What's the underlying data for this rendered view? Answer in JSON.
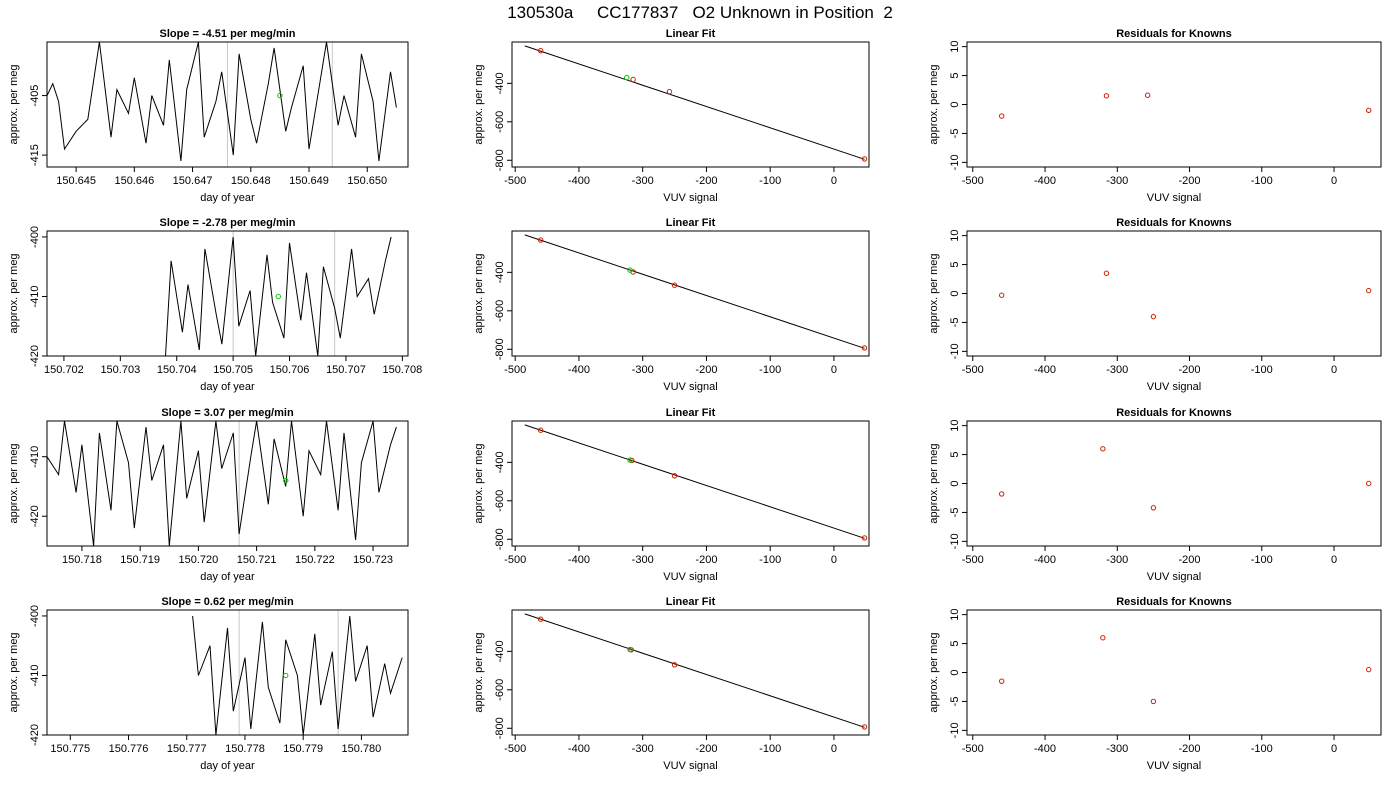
{
  "header": {
    "title": "130530a     CC177837   O2 Unknown in Position  2"
  },
  "colors": {
    "trace": "#000000",
    "known_point": "#cc2200",
    "unknown_point": "#00cc00",
    "marker_line": "#c8c8c8",
    "axis": "#000000"
  },
  "chart_data": [
    {
      "type": "line",
      "title": "Slope =  -4.51  per meg/min",
      "xlabel": "day of year",
      "ylabel": "approx. per meg",
      "xlim": [
        150.6445,
        150.6507
      ],
      "ylim": [
        -417,
        -396
      ],
      "xticks": [
        150.645,
        150.646,
        150.647,
        150.648,
        150.649,
        150.65
      ],
      "xtick_labels": [
        "150.645",
        "150.646",
        "150.647",
        "150.648",
        "150.649",
        "150.650"
      ],
      "yticks": [
        -405,
        -415
      ],
      "ytick_labels": [
        "-405",
        "-415"
      ],
      "vlines": [
        150.6476,
        150.6494
      ],
      "x": [
        150.6445,
        150.6446,
        150.6447,
        150.6448,
        150.645,
        150.6452,
        150.6454,
        150.6456,
        150.6457,
        150.6459,
        150.646,
        150.6462,
        150.6463,
        150.6465,
        150.6466,
        150.6468,
        150.6469,
        150.6471,
        150.6472,
        150.6474,
        150.6475,
        150.6477,
        150.6478,
        150.648,
        150.6481,
        150.6483,
        150.6484,
        150.6486,
        150.6487,
        150.6489,
        150.649,
        150.6492,
        150.6493,
        150.6495,
        150.6496,
        150.6498,
        150.6499,
        150.6501,
        150.6502,
        150.6504,
        150.6505
      ],
      "y": [
        -405,
        -403,
        -406,
        -414,
        -411,
        -409,
        -396,
        -412,
        -404,
        -408,
        -402,
        -413,
        -405,
        -410,
        -399,
        -416,
        -404,
        -396,
        -412,
        -406,
        -401,
        -415,
        -398,
        -409,
        -413,
        -403,
        -397,
        -411,
        -407,
        -400,
        -414,
        -402,
        -396,
        -410,
        -405,
        -412,
        -398,
        -406,
        -416,
        -401,
        -407
      ],
      "highlight": {
        "x": 150.6485,
        "y": -405
      }
    },
    {
      "type": "scatter",
      "title": "Linear Fit",
      "xlabel": "VUV signal",
      "ylabel": "approx. per meg",
      "xlim": [
        -505,
        55
      ],
      "ylim": [
        -835,
        -185
      ],
      "xticks": [
        -500,
        -400,
        -300,
        -200,
        -100,
        0
      ],
      "xtick_labels": [
        "-500",
        "-400",
        "-300",
        "-200",
        "-100",
        "0"
      ],
      "yticks": [
        -400,
        -600,
        -800
      ],
      "ytick_labels": [
        "-400",
        "-600",
        "-800"
      ],
      "line": {
        "x1": -485,
        "y1": -205,
        "x2": 48,
        "y2": -795
      },
      "points": [
        [
          -460,
          -230
        ],
        [
          -315,
          -380
        ],
        [
          -258,
          -443
        ],
        [
          48,
          -793
        ]
      ],
      "highlight": {
        "x": -325,
        "y": -370
      }
    },
    {
      "type": "scatter",
      "title": "Residuals for Knowns",
      "xlabel": "VUV signal",
      "ylabel": "approx. per meg",
      "xlim": [
        -508,
        65
      ],
      "ylim": [
        -10.8,
        10.8
      ],
      "xticks": [
        -500,
        -400,
        -300,
        -200,
        -100,
        0
      ],
      "xtick_labels": [
        "-500",
        "-400",
        "-300",
        "-200",
        "-100",
        "0"
      ],
      "yticks": [
        10,
        5,
        0,
        -5,
        -10
      ],
      "ytick_labels": [
        "10",
        "5",
        "0",
        "-5",
        "-10"
      ],
      "points": [
        [
          -460,
          -2.0
        ],
        [
          -315,
          1.5
        ],
        [
          -258,
          1.6
        ],
        [
          48,
          -1.0
        ]
      ]
    },
    {
      "type": "line",
      "title": "Slope =  -2.78  per meg/min",
      "xlabel": "day of year",
      "ylabel": "approx. per meg",
      "xlim": [
        150.7017,
        150.7081
      ],
      "ylim": [
        -420,
        -399
      ],
      "xticks": [
        150.702,
        150.703,
        150.704,
        150.705,
        150.706,
        150.707,
        150.708
      ],
      "xtick_labels": [
        "150.702",
        "150.703",
        "150.704",
        "150.705",
        "150.706",
        "150.707",
        "150.708"
      ],
      "yticks": [
        -400,
        -410,
        -420
      ],
      "ytick_labels": [
        "-400",
        "-410",
        "-420"
      ],
      "vlines": [
        150.705,
        150.7068
      ],
      "x": [
        150.7038,
        150.7039,
        150.7041,
        150.7042,
        150.7044,
        150.7045,
        150.7047,
        150.7048,
        150.705,
        150.7051,
        150.7053,
        150.7054,
        150.7056,
        150.7057,
        150.7059,
        150.706,
        150.7062,
        150.7063,
        150.7065,
        150.7066,
        150.7068,
        150.7069,
        150.7071,
        150.7072,
        150.7074,
        150.7075,
        150.7077,
        150.7078
      ],
      "y": [
        -420,
        -404,
        -416,
        -408,
        -419,
        -402,
        -413,
        -418,
        -400,
        -415,
        -409,
        -420,
        -403,
        -411,
        -417,
        -401,
        -414,
        -406,
        -420,
        -405,
        -412,
        -417,
        -402,
        -410,
        -407,
        -413,
        -404,
        -400
      ],
      "highlight": {
        "x": 150.7058,
        "y": -410
      }
    },
    {
      "type": "scatter",
      "title": "Linear Fit",
      "xlabel": "VUV signal",
      "ylabel": "approx. per meg",
      "xlim": [
        -505,
        55
      ],
      "ylim": [
        -835,
        -185
      ],
      "xticks": [
        -500,
        -400,
        -300,
        -200,
        -100,
        0
      ],
      "xtick_labels": [
        "-500",
        "-400",
        "-300",
        "-200",
        "-100",
        "0"
      ],
      "yticks": [
        -400,
        -600,
        -800
      ],
      "ytick_labels": [
        "-400",
        "-600",
        "-800"
      ],
      "line": {
        "x1": -485,
        "y1": -205,
        "x2": 48,
        "y2": -795
      },
      "points": [
        [
          -460,
          -232
        ],
        [
          -315,
          -398
        ],
        [
          -250,
          -467
        ],
        [
          48,
          -793
        ]
      ],
      "highlight": {
        "x": -320,
        "y": -388
      }
    },
    {
      "type": "scatter",
      "title": "Residuals for Knowns",
      "xlabel": "VUV signal",
      "ylabel": "approx. per meg",
      "xlim": [
        -508,
        65
      ],
      "ylim": [
        -10.8,
        10.8
      ],
      "xticks": [
        -500,
        -400,
        -300,
        -200,
        -100,
        0
      ],
      "xtick_labels": [
        "-500",
        "-400",
        "-300",
        "-200",
        "-100",
        "0"
      ],
      "yticks": [
        10,
        5,
        0,
        -5,
        -10
      ],
      "ytick_labels": [
        "10",
        "5",
        "0",
        "-5",
        "-10"
      ],
      "points": [
        [
          -460,
          -0.3
        ],
        [
          -315,
          3.5
        ],
        [
          -250,
          -4.0
        ],
        [
          48,
          0.5
        ]
      ]
    },
    {
      "type": "line",
      "title": "Slope =  3.07  per meg/min",
      "xlabel": "day of year",
      "ylabel": "approx. per meg",
      "xlim": [
        150.7174,
        150.7236
      ],
      "ylim": [
        -425,
        -404
      ],
      "xticks": [
        150.718,
        150.719,
        150.72,
        150.721,
        150.722,
        150.723
      ],
      "xtick_labels": [
        "150.718",
        "150.719",
        "150.720",
        "150.721",
        "150.722",
        "150.723"
      ],
      "yticks": [
        -410,
        -420
      ],
      "ytick_labels": [
        "-410",
        "-420"
      ],
      "vlines": [
        150.7207
      ],
      "x": [
        150.7174,
        150.7176,
        150.7177,
        150.7179,
        150.718,
        150.7182,
        150.7183,
        150.7185,
        150.7186,
        150.7188,
        150.7189,
        150.7191,
        150.7192,
        150.7194,
        150.7195,
        150.7197,
        150.7198,
        150.72,
        150.7201,
        150.7203,
        150.7204,
        150.7206,
        150.7207,
        150.7209,
        150.721,
        150.7212,
        150.7213,
        150.7215,
        150.7216,
        150.7218,
        150.7219,
        150.7221,
        150.7222,
        150.7224,
        150.7225,
        150.7227,
        150.7228,
        150.723,
        150.7231,
        150.7233,
        150.7234
      ],
      "y": [
        -410,
        -413,
        -404,
        -416,
        -408,
        -425,
        -406,
        -419,
        -404,
        -411,
        -422,
        -405,
        -414,
        -408,
        -425,
        -404,
        -417,
        -409,
        -421,
        -404,
        -412,
        -406,
        -423,
        -410,
        -404,
        -418,
        -407,
        -415,
        -404,
        -420,
        -409,
        -413,
        -404,
        -419,
        -406,
        -424,
        -411,
        -404,
        -416,
        -408,
        -405
      ],
      "highlight": {
        "x": 150.7215,
        "y": -414
      }
    },
    {
      "type": "scatter",
      "title": "Linear Fit",
      "xlabel": "VUV signal",
      "ylabel": "approx. per meg",
      "xlim": [
        -505,
        55
      ],
      "ylim": [
        -835,
        -185
      ],
      "xticks": [
        -500,
        -400,
        -300,
        -200,
        -100,
        0
      ],
      "xtick_labels": [
        "-500",
        "-400",
        "-300",
        "-200",
        "-100",
        "0"
      ],
      "yticks": [
        -400,
        -600,
        -800
      ],
      "ytick_labels": [
        "-400",
        "-600",
        "-800"
      ],
      "line": {
        "x1": -485,
        "y1": -205,
        "x2": 48,
        "y2": -795
      },
      "points": [
        [
          -460,
          -233
        ],
        [
          -317,
          -390
        ],
        [
          -250,
          -470
        ],
        [
          48,
          -793
        ]
      ],
      "highlight": {
        "x": -320,
        "y": -388
      }
    },
    {
      "type": "scatter",
      "title": "Residuals for Knowns",
      "xlabel": "VUV signal",
      "ylabel": "approx. per meg",
      "xlim": [
        -508,
        65
      ],
      "ylim": [
        -10.8,
        10.8
      ],
      "xticks": [
        -500,
        -400,
        -300,
        -200,
        -100,
        0
      ],
      "xtick_labels": [
        "-500",
        "-400",
        "-300",
        "-200",
        "-100",
        "0"
      ],
      "yticks": [
        10,
        5,
        0,
        -5,
        -10
      ],
      "ytick_labels": [
        "10",
        "5",
        "0",
        "-5",
        "-10"
      ],
      "points": [
        [
          -460,
          -1.8
        ],
        [
          -320,
          6.0
        ],
        [
          -250,
          -4.2
        ],
        [
          48,
          0.0
        ]
      ]
    },
    {
      "type": "line",
      "title": "Slope =  0.62  per meg/min",
      "xlabel": "day of year",
      "ylabel": "approx. per meg",
      "xlim": [
        150.7746,
        150.7808
      ],
      "ylim": [
        -420,
        -399
      ],
      "xticks": [
        150.775,
        150.776,
        150.777,
        150.778,
        150.779,
        150.78
      ],
      "xtick_labels": [
        "150.775",
        "150.776",
        "150.777",
        "150.778",
        "150.779",
        "150.780"
      ],
      "yticks": [
        -400,
        -410,
        -420
      ],
      "ytick_labels": [
        "-400",
        "-410",
        "-420"
      ],
      "vlines": [
        150.7779,
        150.7796
      ],
      "x": [
        150.7771,
        150.7772,
        150.7774,
        150.7775,
        150.7777,
        150.7778,
        150.778,
        150.7781,
        150.7783,
        150.7784,
        150.7786,
        150.7787,
        150.7789,
        150.779,
        150.7792,
        150.7793,
        150.7795,
        150.7796,
        150.7798,
        150.7799,
        150.7801,
        150.7802,
        150.7804,
        150.7805,
        150.7807
      ],
      "y": [
        -400,
        -410,
        -405,
        -420,
        -402,
        -416,
        -407,
        -419,
        -401,
        -412,
        -418,
        -404,
        -410,
        -420,
        -403,
        -415,
        -406,
        -419,
        -400,
        -411,
        -405,
        -417,
        -408,
        -413,
        -407
      ],
      "highlight": {
        "x": 150.7787,
        "y": -410
      }
    },
    {
      "type": "scatter",
      "title": "Linear Fit",
      "xlabel": "VUV signal",
      "ylabel": "approx. per meg",
      "xlim": [
        -505,
        55
      ],
      "ylim": [
        -835,
        -185
      ],
      "xticks": [
        -500,
        -400,
        -300,
        -200,
        -100,
        0
      ],
      "xtick_labels": [
        "-500",
        "-400",
        "-300",
        "-200",
        "-100",
        "0"
      ],
      "yticks": [
        -400,
        -600,
        -800
      ],
      "ytick_labels": [
        "-400",
        "-600",
        "-800"
      ],
      "line": {
        "x1": -485,
        "y1": -205,
        "x2": 48,
        "y2": -795
      },
      "points": [
        [
          -460,
          -233
        ],
        [
          -318,
          -392
        ],
        [
          -250,
          -470
        ],
        [
          48,
          -793
        ]
      ],
      "highlight": {
        "x": -320,
        "y": -390
      }
    },
    {
      "type": "scatter",
      "title": "Residuals for Knowns",
      "xlabel": "VUV signal",
      "ylabel": "approx. per meg",
      "xlim": [
        -508,
        65
      ],
      "ylim": [
        -10.8,
        10.8
      ],
      "xticks": [
        -500,
        -400,
        -300,
        -200,
        -100,
        0
      ],
      "xtick_labels": [
        "-500",
        "-400",
        "-300",
        "-200",
        "-100",
        "0"
      ],
      "yticks": [
        10,
        5,
        0,
        -5,
        -10
      ],
      "ytick_labels": [
        "10",
        "5",
        "0",
        "-5",
        "-10"
      ],
      "points": [
        [
          -460,
          -1.5
        ],
        [
          -320,
          6.0
        ],
        [
          -250,
          -5.0
        ],
        [
          48,
          0.5
        ]
      ]
    }
  ]
}
